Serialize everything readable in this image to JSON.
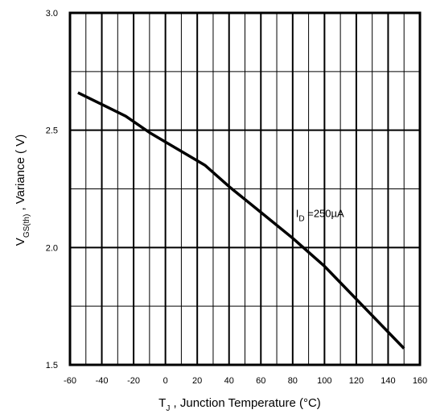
{
  "chart_data": {
    "type": "line",
    "title": "",
    "xlabel": {
      "main": "T",
      "sub": "J",
      "rest": " , Junction Temperature (°C)"
    },
    "ylabel": {
      "main": "V",
      "sub": "GS(th)",
      "rest": "  ,  Variance ( V)"
    },
    "xlim": [
      -60,
      160
    ],
    "ylim": [
      1.5,
      3.0
    ],
    "x_ticks": [
      -60,
      -40,
      -20,
      0,
      20,
      40,
      60,
      80,
      100,
      120,
      140,
      160
    ],
    "x_tick_labels": [
      "-60",
      "-40",
      "-20",
      "0",
      "20",
      "40",
      "60",
      "80",
      "100",
      "120",
      "140",
      "160"
    ],
    "y_ticks": [
      1.5,
      2.0,
      2.5,
      3.0
    ],
    "y_tick_labels": [
      "1.5",
      "2.0",
      "2.5",
      "3.0"
    ],
    "grid": true,
    "series": [
      {
        "name": "",
        "x": [
          -55,
          -40,
          -25,
          -10,
          0,
          10,
          25,
          40,
          60,
          80,
          100,
          120,
          150
        ],
        "y": [
          2.66,
          2.61,
          2.56,
          2.49,
          2.45,
          2.41,
          2.35,
          2.26,
          2.15,
          2.04,
          1.92,
          1.78,
          1.57
        ]
      }
    ],
    "annotation": {
      "main": "I",
      "sub": "D",
      "rest": " =250µA",
      "x": 82,
      "y": 2.13
    }
  }
}
